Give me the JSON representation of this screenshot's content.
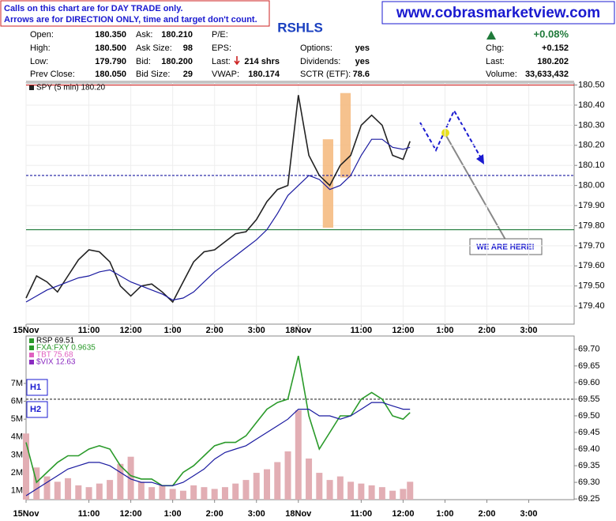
{
  "header": {
    "notice": [
      "Calls on this chart are for DAY TRADE only.",
      "Arrows are for DIRECTION ONLY, time and target don't count."
    ],
    "website": "www.cobrasmarketview.com",
    "symbol": "RSHLS",
    "change_pct": "+0.08%",
    "columns": [
      [
        [
          "Open:",
          "180.350"
        ],
        [
          "High:",
          "180.500"
        ],
        [
          "Low:",
          "179.790"
        ],
        [
          "Prev Close:",
          "180.050"
        ]
      ],
      [
        [
          "Ask:",
          "180.210"
        ],
        [
          "Ask Size:",
          "98"
        ],
        [
          "Bid:",
          "180.200"
        ],
        [
          "Bid Size:",
          "29"
        ]
      ],
      [
        [
          "P/E:"
        ],
        [
          "EPS:"
        ],
        [
          "Last:",
          "214 shrs"
        ],
        [
          "VWAP:",
          "180.174"
        ]
      ],
      [
        [
          "Options:",
          "yes"
        ],
        [
          "Dividends:",
          "yes"
        ],
        [
          "SCTR (ETF):",
          "78.6"
        ]
      ],
      [
        [
          "Chg:",
          "+0.152"
        ],
        [
          "Last:",
          "180.202"
        ],
        [
          "Volume:",
          "33,633,432"
        ]
      ]
    ]
  },
  "chart_data": [
    {
      "type": "line",
      "xlim": [
        0,
        157
      ],
      "xticks": [
        {
          "value": 0,
          "label": "15Nov"
        },
        {
          "value": 18,
          "label": "11:00"
        },
        {
          "value": 30,
          "label": "12:00"
        },
        {
          "value": 42,
          "label": "1:00"
        },
        {
          "value": 54,
          "label": "2:00"
        },
        {
          "value": 66,
          "label": "3:00"
        },
        {
          "value": 78,
          "label": "18Nov"
        },
        {
          "value": 96,
          "label": "11:00"
        },
        {
          "value": 108,
          "label": "12:00"
        },
        {
          "value": 120,
          "label": "1:00"
        },
        {
          "value": 132,
          "label": "2:00"
        },
        {
          "value": 144,
          "label": "3:00"
        }
      ],
      "ylim": [
        179.31,
        180.51
      ],
      "yticks": [
        {
          "value": 179.4,
          "label": "179.40"
        },
        {
          "value": 179.5,
          "label": "179.50"
        },
        {
          "value": 179.6,
          "label": "179.60"
        },
        {
          "value": 179.7,
          "label": "179.70"
        },
        {
          "value": 179.8,
          "label": "179.80"
        },
        {
          "value": 179.9,
          "label": "179.90"
        },
        {
          "value": 180.0,
          "label": "180.00"
        },
        {
          "value": 180.1,
          "label": "180.10"
        },
        {
          "value": 180.2,
          "label": "180.20"
        },
        {
          "value": 180.3,
          "label": "180.30"
        },
        {
          "value": 180.4,
          "label": "180.40"
        },
        {
          "value": 180.5,
          "label": "180.50"
        }
      ],
      "grid": true,
      "x": [
        0,
        3,
        6,
        9,
        12,
        15,
        18,
        21,
        24,
        27,
        30,
        33,
        36,
        39,
        42,
        45,
        48,
        51,
        54,
        57,
        60,
        63,
        66,
        69,
        72,
        75,
        78,
        81,
        84,
        87,
        90,
        93,
        96,
        99,
        102,
        105,
        108,
        110
      ],
      "series": [
        {
          "name": "SPY (5 min) 180.20",
          "color": "#222222",
          "values": [
            179.44,
            179.55,
            179.52,
            179.47,
            179.55,
            179.63,
            179.68,
            179.67,
            179.62,
            179.5,
            179.45,
            179.5,
            179.51,
            179.47,
            179.42,
            179.52,
            179.62,
            179.67,
            179.68,
            179.72,
            179.76,
            179.77,
            179.83,
            179.92,
            179.98,
            180.0,
            180.45,
            180.15,
            180.05,
            180.0,
            180.1,
            180.15,
            180.3,
            180.35,
            180.3,
            180.15,
            180.13,
            180.22
          ]
        },
        {
          "color": "#1a1aa0",
          "values": [
            179.42,
            179.45,
            179.48,
            179.5,
            179.52,
            179.54,
            179.55,
            179.57,
            179.58,
            179.55,
            179.52,
            179.5,
            179.48,
            179.46,
            179.43,
            179.44,
            179.47,
            179.52,
            179.57,
            179.61,
            179.65,
            179.69,
            179.73,
            179.78,
            179.86,
            179.95,
            180.0,
            180.05,
            180.03,
            179.98,
            180.0,
            180.05,
            180.15,
            180.23,
            180.23,
            180.19,
            180.18,
            180.19
          ]
        }
      ],
      "hlines": [
        {
          "value": 180.5,
          "color": "#cc2222"
        },
        {
          "value": 179.78,
          "color": "#1f7a3a"
        },
        {
          "value": 180.05,
          "color": "#1a1aa0",
          "dashed": true
        }
      ],
      "highlights": [
        {
          "x": [
            85,
            88
          ],
          "y": [
            179.79,
            180.23
          ],
          "color": "#f5b77a"
        },
        {
          "x": [
            90,
            93
          ],
          "y": [
            180.04,
            180.46
          ],
          "color": "#f5b77a"
        }
      ],
      "annotation": "WE ARE HERE!"
    },
    {
      "type": "line",
      "xlim": [
        0,
        157
      ],
      "xticks": [
        {
          "value": 0,
          "label": "15Nov"
        },
        {
          "value": 18,
          "label": "11:00"
        },
        {
          "value": 30,
          "label": "12:00"
        },
        {
          "value": 42,
          "label": "1:00"
        },
        {
          "value": 54,
          "label": "2:00"
        },
        {
          "value": 66,
          "label": "3:00"
        },
        {
          "value": 78,
          "label": "18Nov"
        },
        {
          "value": 96,
          "label": "11:00"
        },
        {
          "value": 108,
          "label": "12:00"
        },
        {
          "value": 120,
          "label": "1:00"
        },
        {
          "value": 132,
          "label": "2:00"
        },
        {
          "value": 144,
          "label": "3:00"
        }
      ],
      "ylim": [
        69.248,
        69.74
      ],
      "yticks": [
        {
          "value": 69.25,
          "label": "69.25"
        },
        {
          "value": 69.3,
          "label": "69.30"
        },
        {
          "value": 69.35,
          "label": "69.35"
        },
        {
          "value": 69.4,
          "label": "69.40"
        },
        {
          "value": 69.45,
          "label": "69.45"
        },
        {
          "value": 69.5,
          "label": "69.50"
        },
        {
          "value": 69.55,
          "label": "69.55"
        },
        {
          "value": 69.6,
          "label": "69.60"
        },
        {
          "value": 69.65,
          "label": "69.65"
        },
        {
          "value": 69.7,
          "label": "69.70"
        }
      ],
      "y2lim": [
        500000,
        9650000
      ],
      "y2ticks": [
        {
          "value": 1000000,
          "label": "1M"
        },
        {
          "value": 2000000,
          "label": "2M"
        },
        {
          "value": 3000000,
          "label": "3M"
        },
        {
          "value": 4000000,
          "label": "4M"
        },
        {
          "value": 5000000,
          "label": "5M"
        },
        {
          "value": 6000000,
          "label": "6M"
        },
        {
          "value": 7000000,
          "label": "7M"
        }
      ],
      "x": [
        0,
        3,
        6,
        9,
        12,
        15,
        18,
        21,
        24,
        27,
        30,
        33,
        36,
        39,
        42,
        45,
        48,
        51,
        54,
        57,
        60,
        63,
        66,
        69,
        72,
        75,
        78,
        81,
        84,
        87,
        90,
        93,
        96,
        99,
        102,
        105,
        108,
        110
      ],
      "series": [
        {
          "type": "bar",
          "axis": "y2",
          "color": "#e2aeb4",
          "values": [
            4200000,
            2300000,
            1800000,
            1500000,
            1700000,
            1300000,
            1200000,
            1400000,
            1600000,
            2500000,
            2900000,
            1500000,
            1200000,
            1300000,
            1100000,
            1000000,
            1300000,
            1200000,
            1100000,
            1200000,
            1400000,
            1600000,
            2000000,
            2200000,
            2600000,
            3200000,
            5500000,
            2800000,
            2000000,
            1600000,
            1800000,
            1500000,
            1400000,
            1300000,
            1200000,
            1000000,
            1100000,
            1500000
          ]
        },
        {
          "name": "RSP 69.51",
          "color": "#2a9a2a",
          "values": [
            69.42,
            69.3,
            69.33,
            69.36,
            69.38,
            69.38,
            69.4,
            69.41,
            69.4,
            69.35,
            69.32,
            69.31,
            69.31,
            69.29,
            69.29,
            69.33,
            69.35,
            69.38,
            69.41,
            69.42,
            69.42,
            69.44,
            69.48,
            69.52,
            69.54,
            69.55,
            69.68,
            69.5,
            69.4,
            69.45,
            69.5,
            69.5,
            69.55,
            69.57,
            69.55,
            69.5,
            69.49,
            69.51
          ]
        },
        {
          "color": "#1a1aa0",
          "values": [
            69.26,
            69.28,
            69.3,
            69.32,
            69.34,
            69.35,
            69.36,
            69.36,
            69.35,
            69.33,
            69.31,
            69.3,
            69.3,
            69.29,
            69.29,
            69.3,
            69.32,
            69.34,
            69.37,
            69.39,
            69.4,
            69.41,
            69.43,
            69.45,
            69.47,
            69.49,
            69.52,
            69.52,
            69.5,
            69.5,
            69.49,
            69.5,
            69.52,
            69.54,
            69.54,
            69.53,
            69.52,
            69.52
          ]
        }
      ],
      "overlays": [
        {
          "name": "FXA:FXY 0.9635",
          "color": "#2a9a2a"
        },
        {
          "name": "TBT 75.68",
          "color": "#e060c0"
        },
        {
          "name": "$VIX 12.63",
          "color": "#8a2ac0"
        }
      ],
      "hlines": [
        {
          "value": 69.55,
          "color": "#333333",
          "dashed": true
        }
      ],
      "boxes": [
        "H1",
        "H2"
      ]
    }
  ]
}
